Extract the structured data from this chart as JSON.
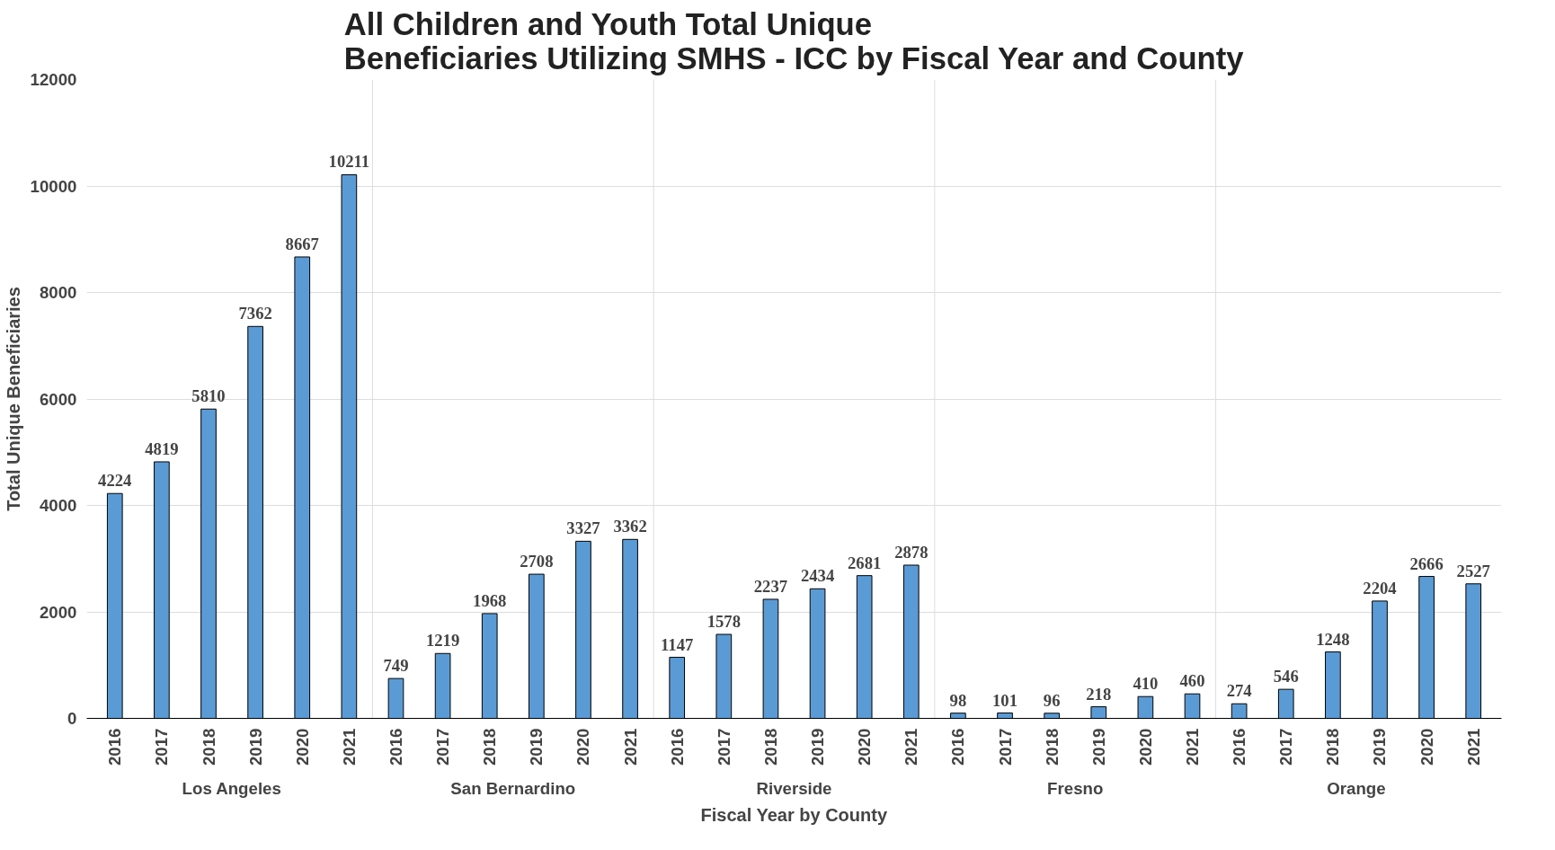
{
  "chart_data": {
    "type": "bar",
    "title": "All Children and Youth Total Unique\nBeneficiaries Utilizing SMHS - ICC by Fiscal Year and County",
    "xlabel": "Fiscal Year by County",
    "ylabel": "Total Unique Beneficiaries",
    "categories": [
      "2016",
      "2017",
      "2018",
      "2019",
      "2020",
      "2021",
      "2016",
      "2017",
      "2018",
      "2019",
      "2020",
      "2021",
      "2016",
      "2017",
      "2018",
      "2019",
      "2020",
      "2021",
      "2016",
      "2017",
      "2018",
      "2019",
      "2020",
      "2021",
      "2016",
      "2017",
      "2018",
      "2019",
      "2020",
      "2021"
    ],
    "annotations": [
      "Los Angeles",
      "San Bernardino",
      "Riverside",
      "Fresno",
      "Orange"
    ],
    "values": [
      4224,
      4819,
      5810,
      7362,
      8667,
      10211,
      749,
      1219,
      1968,
      2708,
      3327,
      3362,
      1147,
      1578,
      2237,
      2434,
      2681,
      2878,
      98,
      101,
      96,
      218,
      410,
      460,
      274,
      546,
      1248,
      2204,
      2666,
      2527
    ],
    "color": "#5b9bd5",
    "ylim": [
      0,
      12000
    ],
    "yticks": [
      0,
      2000,
      4000,
      6000,
      8000,
      10000,
      12000
    ],
    "grid": "y",
    "data_labels": true
  }
}
